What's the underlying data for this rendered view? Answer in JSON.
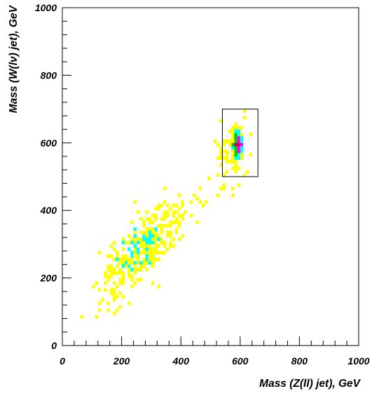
{
  "chart_data": {
    "type": "heatmap",
    "title": "",
    "xlabel": "Mass (Z(ll) jet), GeV",
    "ylabel": "Mass (W(lν) jet), GeV",
    "xlim": [
      0,
      1000
    ],
    "ylim": [
      0,
      1000
    ],
    "x_ticks_major": [
      0,
      200,
      400,
      600,
      800,
      1000
    ],
    "y_ticks_major": [
      0,
      200,
      400,
      600,
      800,
      1000
    ],
    "x_ticks_minor_step": 40,
    "y_ticks_minor_step": 40,
    "bin_width": 10,
    "grid": false,
    "legend": "none",
    "color_levels": [
      {
        "level": 1,
        "color": "#ffff00"
      },
      {
        "level": 2,
        "color": "#00ffff"
      },
      {
        "level": 3,
        "color": "#00cc00"
      },
      {
        "level": 4,
        "color": "#ff00ff"
      },
      {
        "level": 5,
        "color": "#cc0066"
      },
      {
        "level": 6,
        "color": "#000066"
      }
    ],
    "regions": [
      {
        "kind": "diffuse",
        "cx": 280,
        "cy": 290,
        "sx": 75,
        "sy": 75,
        "rho": 0.78,
        "count": 380,
        "level": 1
      },
      {
        "kind": "diffuse",
        "cx": 260,
        "cy": 280,
        "sx": 40,
        "sy": 40,
        "rho": 0.7,
        "count": 40,
        "level": 2
      },
      {
        "kind": "diffuse",
        "cx": 570,
        "cy": 560,
        "sx": 30,
        "sy": 60,
        "rho": 0.3,
        "count": 70,
        "level": 1
      },
      {
        "kind": "core",
        "cx": 590,
        "cy": 595,
        "rx": 22,
        "ry": 60,
        "level": 1
      },
      {
        "kind": "core",
        "cx": 590,
        "cy": 595,
        "rx": 16,
        "ry": 48,
        "level": 2
      },
      {
        "kind": "core",
        "cx": 590,
        "cy": 595,
        "rx": 12,
        "ry": 32,
        "level": 3
      },
      {
        "kind": "core",
        "cx": 590,
        "cy": 595,
        "rx": 10,
        "ry": 22,
        "level": 4
      },
      {
        "kind": "core",
        "cx": 590,
        "cy": 598,
        "rx": 5,
        "ry": 12,
        "level": 5
      },
      {
        "kind": "core",
        "cx": 590,
        "cy": 600,
        "rx": 3,
        "ry": 5,
        "level": 6
      }
    ],
    "annotation_box": {
      "x0": 540,
      "x1": 660,
      "y0": 500,
      "y1": 700
    }
  }
}
